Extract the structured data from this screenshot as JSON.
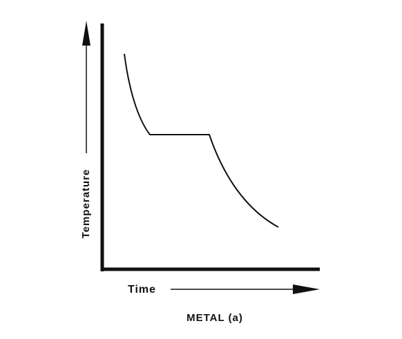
{
  "labels": {
    "y_axis": "Temperature",
    "x_axis": "Time",
    "caption": "METAL (a)"
  }
}
